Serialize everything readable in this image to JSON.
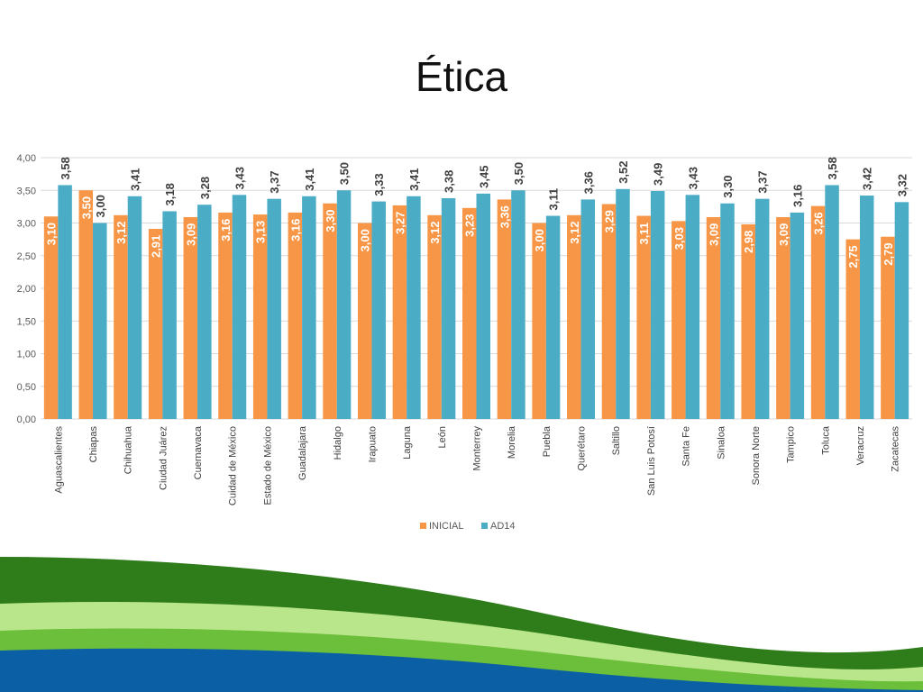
{
  "slide": {
    "title": "Ética"
  },
  "colors": {
    "inicial": "#F79646",
    "ad14": "#4BACC6",
    "grid": "#D9D9D9",
    "wave_dark_green": "#2E7D1A",
    "wave_light_green": "#B9E68A",
    "wave_mid_green": "#6BBF3A",
    "wave_blue": "#0B5FA5"
  },
  "chart_data": {
    "type": "bar",
    "title": "Ética",
    "ylim": [
      0,
      4
    ],
    "yticks": [
      "0,00",
      "0,50",
      "1,00",
      "1,50",
      "2,00",
      "2,50",
      "3,00",
      "3,50",
      "4,00"
    ],
    "ytick_values": [
      0,
      0.5,
      1,
      1.5,
      2,
      2.5,
      3,
      3.5,
      4
    ],
    "grid": true,
    "legend_position": "bottom",
    "categories": [
      "Aguascalientes",
      "Chiapas",
      "Chihuahua",
      "Ciudad Juárez",
      "Cuernavaca",
      "Cuidad de México",
      "Estado de México",
      "Guadalajara",
      "Hidalgo",
      "Irapuato",
      "Laguna",
      "León",
      "Monterrey",
      "Morelia",
      "Puebla",
      "Querétaro",
      "Saltillo",
      "San Luis Potosí",
      "Santa Fe",
      "Sinaloa",
      "Sonora Norte",
      "Tampico",
      "Toluca",
      "Veracruz",
      "Zacatecas"
    ],
    "series": [
      {
        "name": "INICIAL",
        "values": [
          3.1,
          3.5,
          3.12,
          2.91,
          3.09,
          3.16,
          3.13,
          3.16,
          3.3,
          3.0,
          3.27,
          3.12,
          3.23,
          3.36,
          3.0,
          3.12,
          3.29,
          3.11,
          3.03,
          3.09,
          2.98,
          3.09,
          3.26,
          2.75,
          2.79
        ],
        "labels": [
          "3,10",
          "3,50",
          "3,12",
          "2,91",
          "3,09",
          "3,16",
          "3,13",
          "3,16",
          "3,30",
          "3,00",
          "3,27",
          "3,12",
          "3,23",
          "3,36",
          "3,00",
          "3,12",
          "3,29",
          "3,11",
          "3,03",
          "3,09",
          "2,98",
          "3,09",
          "3,26",
          "2,75",
          "2,79"
        ]
      },
      {
        "name": "AD14",
        "values": [
          3.58,
          3.0,
          3.41,
          3.18,
          3.28,
          3.43,
          3.37,
          3.41,
          3.5,
          3.33,
          3.41,
          3.38,
          3.45,
          3.5,
          3.11,
          3.36,
          3.52,
          3.49,
          3.43,
          3.3,
          3.37,
          3.16,
          3.58,
          3.42,
          3.32
        ],
        "labels": [
          "3,58",
          "3,00",
          "3,41",
          "3,18",
          "3,28",
          "3,43",
          "3,37",
          "3,41",
          "3,50",
          "3,33",
          "3,41",
          "3,38",
          "3,45",
          "3,50",
          "3,11",
          "3,36",
          "3,52",
          "3,49",
          "3,43",
          "3,30",
          "3,37",
          "3,16",
          "3,58",
          "3,42",
          "3,32"
        ]
      }
    ]
  }
}
